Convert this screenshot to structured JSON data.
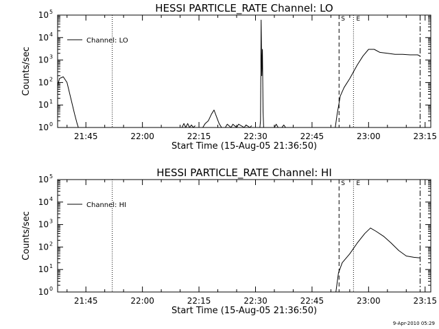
{
  "chart_data": [
    {
      "type": "line",
      "title": "HESSI PARTICLE_RATE Channel: LO",
      "xlabel": "Start Time (15-Aug-05 21:36:50)",
      "ylabel": "Counts/sec",
      "y_scale": "log",
      "ylim": [
        1,
        100000
      ],
      "y_ticks": [
        {
          "base": "10",
          "exp": "0"
        },
        {
          "base": "10",
          "exp": "1"
        },
        {
          "base": "10",
          "exp": "2"
        },
        {
          "base": "10",
          "exp": "3"
        },
        {
          "base": "10",
          "exp": "4"
        },
        {
          "base": "10",
          "exp": "5"
        }
      ],
      "x_ticks": [
        "21:45",
        "22:00",
        "22:15",
        "22:30",
        "22:45",
        "23:00",
        "23:15"
      ],
      "xlim": [
        "21:37:30",
        "23:16:30"
      ],
      "legend": {
        "label": "Channel: LO",
        "placement": "top-left"
      },
      "markers": [
        {
          "label": "",
          "time": "21:52:00",
          "style": "dotted"
        },
        {
          "label": "S",
          "time": "22:52:10",
          "style": "dashed"
        },
        {
          "label": "E",
          "time": "22:56:00",
          "style": "dotted"
        },
        {
          "label": "",
          "time": "23:13:40",
          "style": "dash-dot"
        }
      ],
      "series": [
        {
          "name": "Channel: LO",
          "x": [
            "21:37:30",
            "21:38:00",
            "21:39:00",
            "21:40:00",
            "21:41:00",
            "21:42:00",
            "21:42:40",
            "21:43:00"
          ],
          "y": [
            70,
            150,
            180,
            100,
            20,
            4,
            1.5,
            1
          ]
        },
        {
          "name": "Channel: LO",
          "x": [
            "22:10:30",
            "22:11:00",
            "22:11:30",
            "22:12:00",
            "22:12:30",
            "22:13:00",
            "22:13:30",
            "22:14:00"
          ],
          "y": [
            1,
            1.5,
            1,
            1.5,
            1,
            1.3,
            1,
            1.2
          ]
        },
        {
          "name": "Channel: LO",
          "x": [
            "22:16:00",
            "22:16:40",
            "22:17:30",
            "22:18:20",
            "22:19:00",
            "22:19:40",
            "22:20:20",
            "22:21:00"
          ],
          "y": [
            1,
            1.5,
            2,
            4,
            6,
            3,
            1.5,
            1
          ]
        },
        {
          "name": "Channel: LO",
          "x": [
            "22:22:00",
            "22:22:30",
            "22:23:30",
            "22:24:00",
            "22:25:00",
            "22:25:30",
            "22:27:00",
            "22:27:30",
            "22:28:30",
            "22:29:00"
          ],
          "y": [
            1,
            1.4,
            1,
            1.4,
            1,
            1.4,
            1,
            1.3,
            1,
            1.2
          ]
        },
        {
          "name": "Channel: LO",
          "x": [
            "22:31:10",
            "22:31:20",
            "22:31:30",
            "22:31:40",
            "22:31:50",
            "22:32:00",
            "22:32:10"
          ],
          "y": [
            1,
            2,
            60000,
            200,
            3000,
            5,
            1
          ]
        },
        {
          "name": "Channel: LO",
          "x": [
            "22:35:00",
            "22:35:30",
            "22:36:00",
            "22:37:00",
            "22:37:30",
            "22:38:00"
          ],
          "y": [
            1,
            1.4,
            1,
            1,
            1.3,
            1
          ]
        },
        {
          "name": "Channel: LO",
          "x": [
            "22:51:10",
            "22:51:40",
            "22:52:30",
            "22:53:30",
            "22:55:00",
            "22:57:00",
            "22:58:30",
            "23:00:00",
            "23:01:30",
            "23:03:00",
            "23:05:00",
            "23:07:00",
            "23:09:00",
            "23:11:00",
            "23:13:00",
            "23:13:40"
          ],
          "y": [
            1,
            4,
            25,
            60,
            150,
            600,
            1500,
            3000,
            3000,
            2200,
            2000,
            1800,
            1800,
            1700,
            1700,
            1500
          ]
        }
      ]
    },
    {
      "type": "line",
      "title": "HESSI PARTICLE_RATE Channel: HI",
      "xlabel": "Start Time (15-Aug-05 21:36:50)",
      "ylabel": "Counts/sec",
      "y_scale": "log",
      "ylim": [
        1,
        100000
      ],
      "y_ticks": [
        {
          "base": "10",
          "exp": "0"
        },
        {
          "base": "10",
          "exp": "1"
        },
        {
          "base": "10",
          "exp": "2"
        },
        {
          "base": "10",
          "exp": "3"
        },
        {
          "base": "10",
          "exp": "4"
        },
        {
          "base": "10",
          "exp": "5"
        }
      ],
      "x_ticks": [
        "21:45",
        "22:00",
        "22:15",
        "22:30",
        "22:45",
        "23:00",
        "23:15"
      ],
      "xlim": [
        "21:37:30",
        "23:16:30"
      ],
      "legend": {
        "label": "Channel: HI",
        "placement": "top-left"
      },
      "markers": [
        {
          "label": "",
          "time": "21:52:00",
          "style": "dotted"
        },
        {
          "label": "S",
          "time": "22:52:10",
          "style": "dashed"
        },
        {
          "label": "E",
          "time": "22:56:00",
          "style": "dotted"
        },
        {
          "label": "",
          "time": "23:13:40",
          "style": "dash-dot"
        }
      ],
      "series": [
        {
          "name": "Channel: HI",
          "x": [
            "22:51:20",
            "22:52:00",
            "22:53:00",
            "22:55:00",
            "22:57:00",
            "22:59:00",
            "23:00:30",
            "23:02:00",
            "23:04:00",
            "23:06:00",
            "23:08:00",
            "23:10:00",
            "23:12:00",
            "23:13:40"
          ],
          "y": [
            1,
            7,
            20,
            50,
            150,
            400,
            700,
            500,
            300,
            150,
            70,
            40,
            35,
            33
          ]
        }
      ]
    }
  ],
  "timestamp": "9-Apr-2010 05:29",
  "colors": {
    "background": "#ffffff",
    "line": "#000000"
  }
}
